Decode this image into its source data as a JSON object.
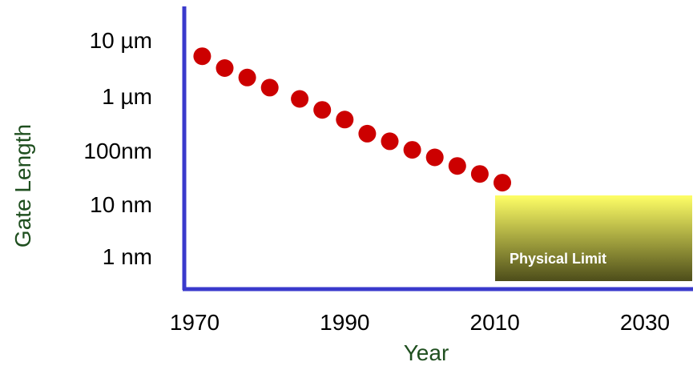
{
  "chart_data": {
    "type": "scatter",
    "title": "",
    "xlabel": "Year",
    "ylabel": "Gate Length",
    "x_ticks": [
      "1970",
      "1990",
      "2010",
      "2030"
    ],
    "y_ticks": [
      "10 µm",
      "1 µm",
      "100nm",
      "10 nm",
      "1 nm"
    ],
    "y_scale": "log",
    "y_unit": "nm",
    "xlim": [
      1970,
      2030
    ],
    "ylim": [
      1,
      10000
    ],
    "grid": false,
    "series": [
      {
        "color": "#cc0000",
        "points": [
          {
            "x": 1971,
            "y": 5000
          },
          {
            "x": 1974,
            "y": 3000
          },
          {
            "x": 1977,
            "y": 2000
          },
          {
            "x": 1980,
            "y": 1300
          },
          {
            "x": 1984,
            "y": 800
          },
          {
            "x": 1987,
            "y": 500
          },
          {
            "x": 1990,
            "y": 330
          },
          {
            "x": 1993,
            "y": 180
          },
          {
            "x": 1996,
            "y": 130
          },
          {
            "x": 1999,
            "y": 90
          },
          {
            "x": 2002,
            "y": 65
          },
          {
            "x": 2005,
            "y": 45
          },
          {
            "x": 2008,
            "y": 32
          },
          {
            "x": 2011,
            "y": 22
          }
        ]
      }
    ],
    "annotations": [
      {
        "text": "Physical Limit",
        "x_from": 2009,
        "x_to": 2030,
        "y_from": 0.6,
        "y_to": 16
      }
    ],
    "colors": {
      "axis": "#3a3acc",
      "marker": "#cc0000",
      "limit_top": "#ffff66",
      "limit_bottom": "#4d4d1a",
      "axis_title": "#1f4f1f"
    }
  }
}
